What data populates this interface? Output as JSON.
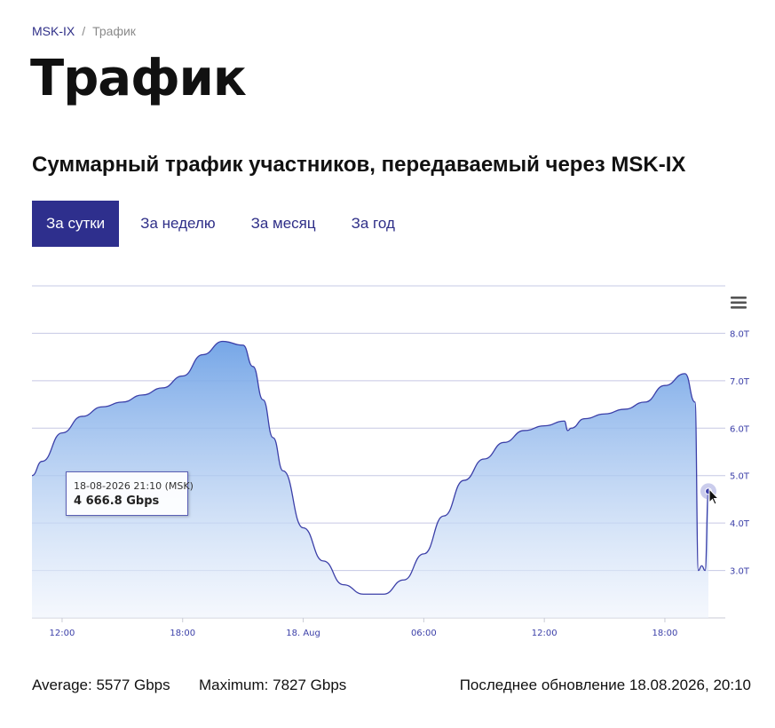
{
  "breadcrumb": {
    "root": "MSK-IX",
    "separator": "/",
    "current": "Трафик"
  },
  "page": {
    "title": "Трафик"
  },
  "section": {
    "title": "Суммарный трафик участников, передаваемый через MSK-IX"
  },
  "tabs": [
    {
      "label": "За сутки",
      "active": true
    },
    {
      "label": "За неделю",
      "active": false
    },
    {
      "label": "За месяц",
      "active": false
    },
    {
      "label": "За год",
      "active": false
    }
  ],
  "icons": {
    "chart_menu": "hamburger-menu-icon",
    "cursor": "mouse-pointer-icon"
  },
  "colors": {
    "accent": "#2e2f8d",
    "line": "#3b3fa8",
    "fill_top": "#7aabe8",
    "grid": "#c6c8e4"
  },
  "chart_data": {
    "type": "area",
    "y_tick_labels": [
      "3.0T",
      "4.0T",
      "5.0T",
      "6.0T",
      "7.0T",
      "8.0T"
    ],
    "x_tick_labels": [
      "12:00",
      "18:00",
      "18. Aug",
      "06:00",
      "12:00",
      "18:00"
    ],
    "ylim": [
      2.0,
      9.0
    ],
    "grid": true,
    "legend": "none",
    "series": [
      {
        "x": [
          "17.08 10:30",
          "17.08 11:00",
          "17.08 12:00",
          "17.08 13:00",
          "17.08 14:00",
          "17.08 15:00",
          "17.08 16:00",
          "17.08 17:00",
          "17.08 18:00",
          "17.08 19:00",
          "17.08 20:00",
          "17.08 21:00",
          "17.08 21:30",
          "17.08 22:00",
          "17.08 22:30",
          "17.08 23:00",
          "18.08 00:00",
          "18.08 01:00",
          "18.08 02:00",
          "18.08 03:00",
          "18.08 04:00",
          "18.08 05:00",
          "18.08 06:00",
          "18.08 07:00",
          "18.08 08:00",
          "18.08 09:00",
          "18.08 10:00",
          "18.08 11:00",
          "18.08 12:00",
          "18.08 13:00",
          "18.08 13:10",
          "18.08 13:20",
          "18.08 14:00",
          "18.08 15:00",
          "18.08 16:00",
          "18.08 17:00",
          "18.08 18:00",
          "18.08 19:00",
          "18.08 19:30",
          "18.08 19:40",
          "18.08 19:50",
          "18.08 20:00",
          "18.08 20:10"
        ],
        "y": [
          5.0,
          5.3,
          5.9,
          6.25,
          6.45,
          6.55,
          6.7,
          6.85,
          7.1,
          7.55,
          7.83,
          7.75,
          7.3,
          6.6,
          5.8,
          5.1,
          3.9,
          3.2,
          2.7,
          2.5,
          2.5,
          2.8,
          3.35,
          4.15,
          4.9,
          5.35,
          5.7,
          5.95,
          6.05,
          6.15,
          5.95,
          6.0,
          6.2,
          6.3,
          6.4,
          6.55,
          6.9,
          7.15,
          6.55,
          3.0,
          3.1,
          3.0,
          4.67
        ]
      }
    ],
    "tooltip": {
      "date": "18-08-2026 21:10 (MSK)",
      "value": "4 666.8 Gbps"
    }
  },
  "footer": {
    "average": "Average: 5577 Gbps",
    "maximum": "Maximum: 7827 Gbps",
    "updated": "Последнее обновление 18.08.2026, 20:10"
  }
}
